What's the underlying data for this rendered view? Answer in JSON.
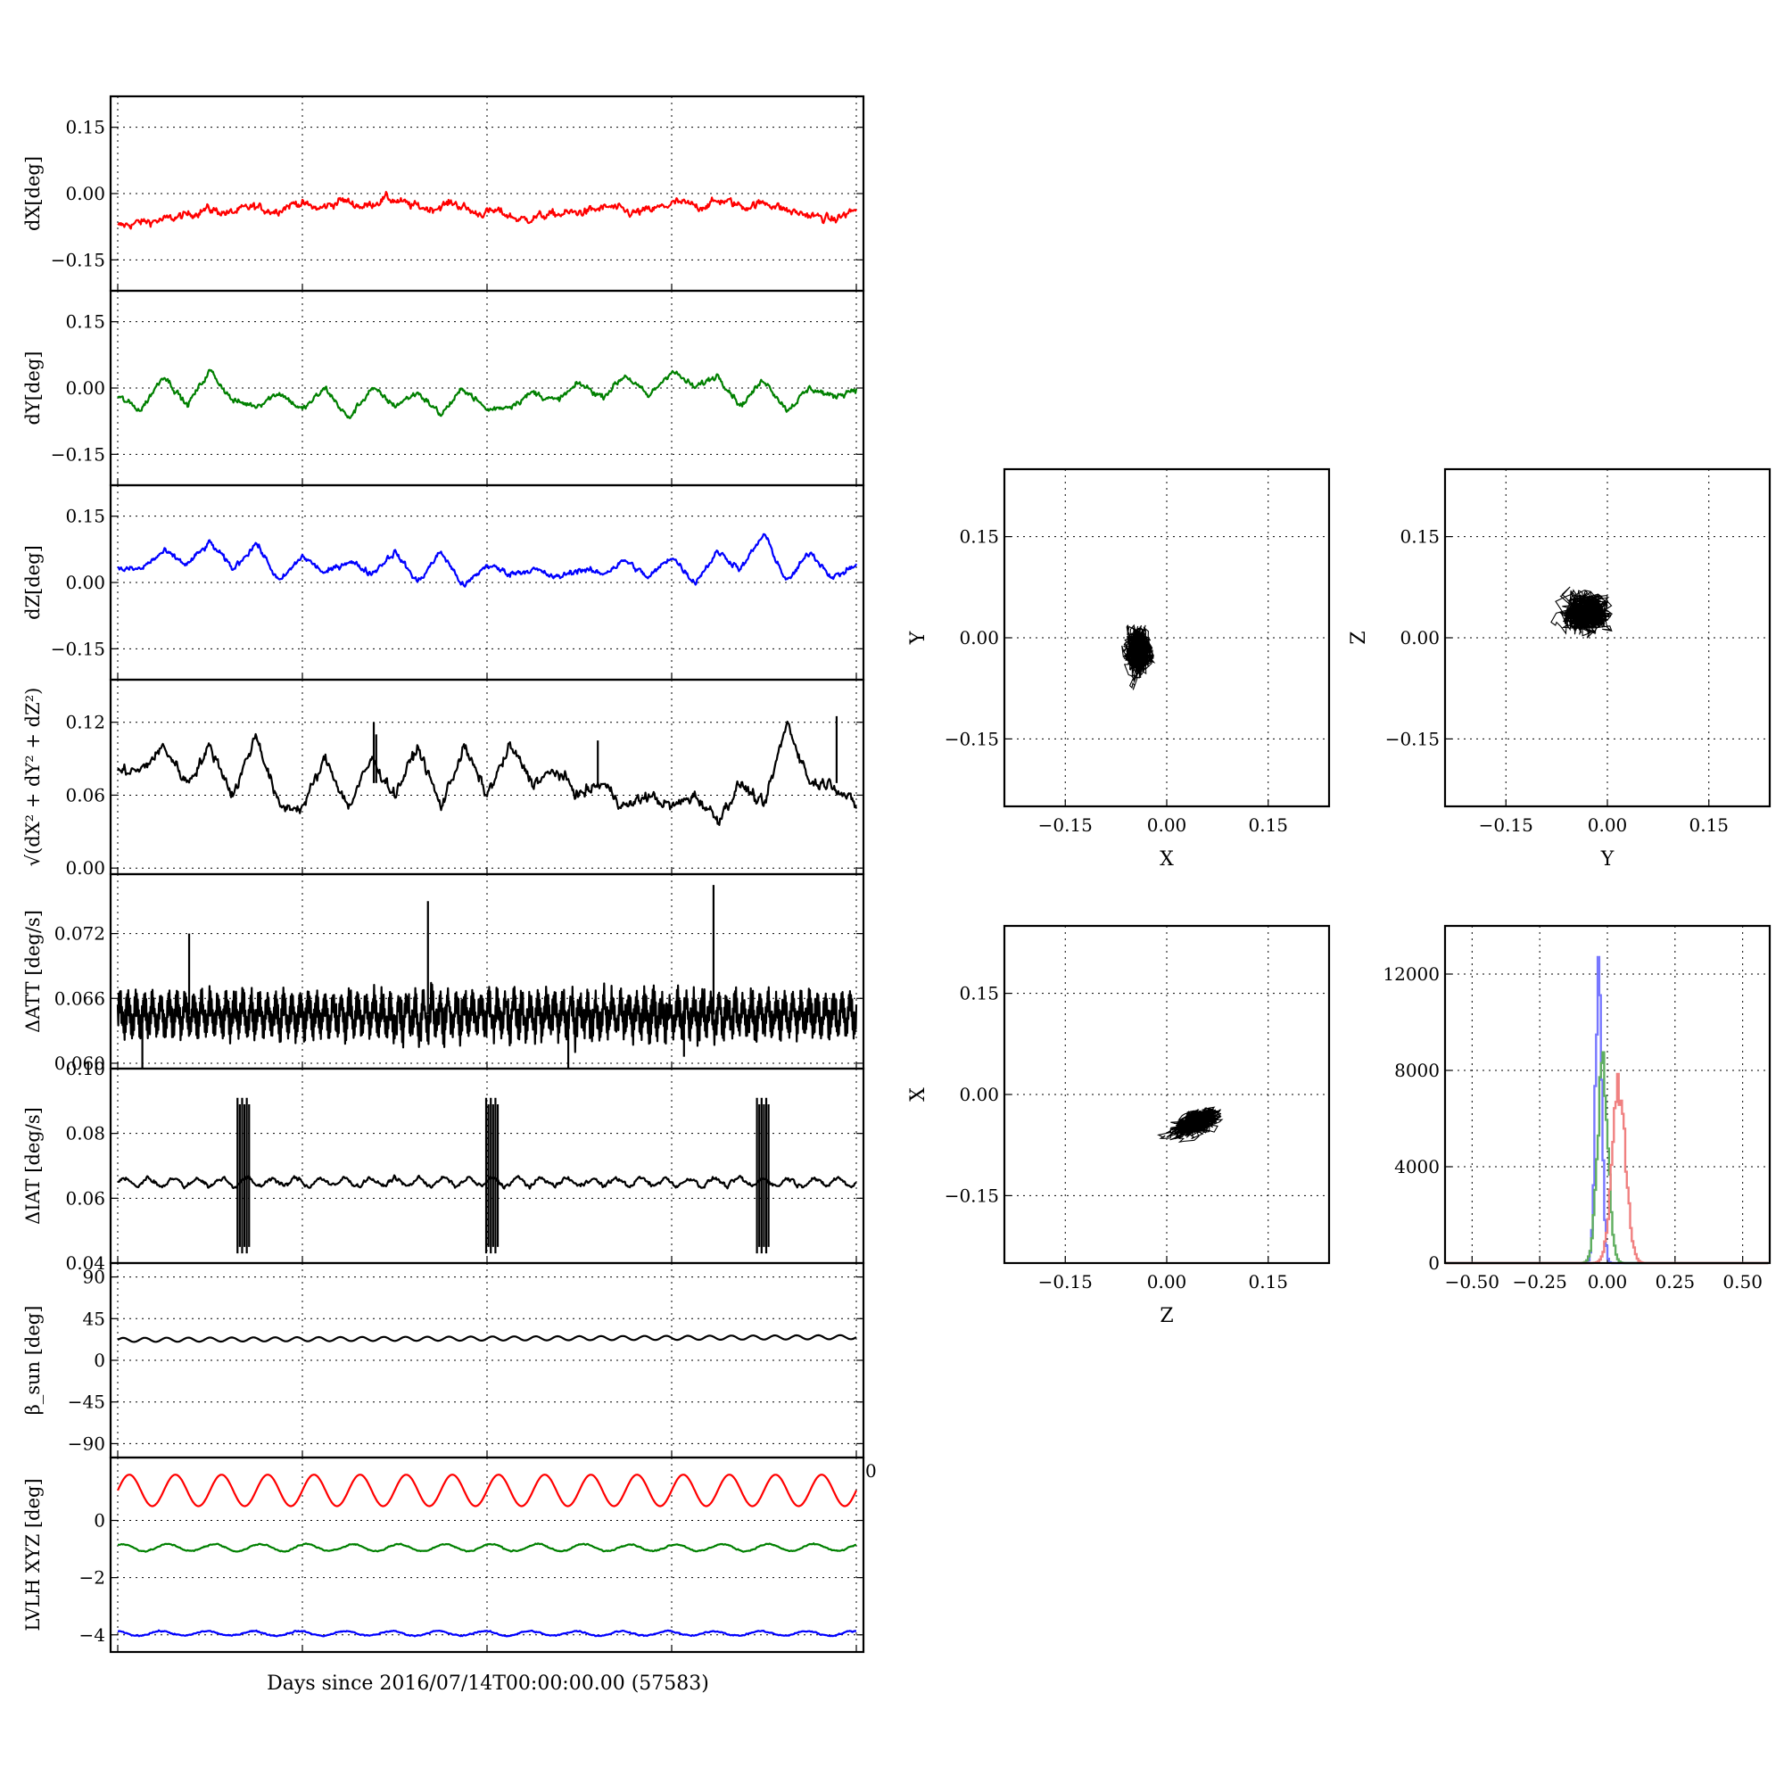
{
  "figure": {
    "xlabel": "Days since 2016/07/14T00:00:00.00 (57583)"
  },
  "chart_data": [
    {
      "id": "dx",
      "type": "line",
      "ylabel": "dX[deg]",
      "ylim": [
        -0.22,
        0.22
      ],
      "yticks": [
        -0.15,
        0.0,
        0.15
      ],
      "ytick_labels": [
        "−0.15",
        "0.00",
        "0.15"
      ],
      "series": [
        {
          "color": "#ff0000",
          "mean": -0.04,
          "amp": 0.012,
          "noise": 0.008,
          "periods": 13,
          "y": [
            -0.075,
            -0.065,
            -0.06,
            -0.05,
            -0.035,
            -0.045,
            -0.03,
            -0.04,
            -0.02,
            -0.035,
            -0.015,
            -0.03,
            -0.01,
            -0.025,
            -0.035,
            -0.02,
            -0.045,
            -0.04,
            -0.06,
            -0.05,
            -0.045,
            -0.04,
            -0.03,
            -0.045,
            -0.035,
            -0.02,
            -0.03,
            -0.015,
            -0.03,
            -0.02,
            -0.04,
            -0.05,
            -0.06,
            -0.035
          ]
        }
      ]
    },
    {
      "id": "dy",
      "type": "line",
      "ylabel": "dY[deg]",
      "ylim": [
        -0.22,
        0.22
      ],
      "yticks": [
        -0.15,
        0.0,
        0.15
      ],
      "ytick_labels": [
        "−0.15",
        "0.00",
        "0.15"
      ],
      "series": [
        {
          "color": "#008000",
          "mean": -0.02,
          "amp": 0.03,
          "noise": 0.006,
          "periods": 16,
          "y": [
            -0.02,
            -0.05,
            0.03,
            -0.04,
            0.04,
            -0.03,
            -0.04,
            -0.01,
            -0.05,
            0.0,
            -0.07,
            0.0,
            -0.04,
            -0.01,
            -0.06,
            0.0,
            -0.05,
            -0.04,
            -0.01,
            -0.03,
            0.01,
            -0.02,
            0.03,
            -0.02,
            0.04,
            0.0,
            0.03,
            -0.04,
            0.02,
            -0.05,
            0.0,
            -0.02,
            0.0
          ]
        }
      ]
    },
    {
      "id": "dz",
      "type": "line",
      "ylabel": "dZ[deg]",
      "ylim": [
        -0.22,
        0.22
      ],
      "yticks": [
        -0.15,
        0.0,
        0.15
      ],
      "ytick_labels": [
        "−0.15",
        "0.00",
        "0.15"
      ],
      "series": [
        {
          "color": "#0000ff",
          "mean": 0.045,
          "amp": 0.03,
          "noise": 0.006,
          "periods": 16,
          "y": [
            0.03,
            0.03,
            0.07,
            0.04,
            0.09,
            0.03,
            0.09,
            0.0,
            0.06,
            0.02,
            0.05,
            0.02,
            0.07,
            0.0,
            0.07,
            -0.01,
            0.04,
            0.02,
            0.03,
            0.01,
            0.03,
            0.02,
            0.05,
            0.01,
            0.06,
            0.0,
            0.07,
            0.03,
            0.11,
            0.0,
            0.07,
            0.01,
            0.04
          ]
        }
      ]
    },
    {
      "id": "dr",
      "type": "line",
      "ylabel": "√(dX² + dY² + dZ²)",
      "ylim": [
        -0.005,
        0.155
      ],
      "yticks": [
        0.0,
        0.06,
        0.12
      ],
      "ytick_labels": [
        "0.00",
        "0.06",
        "0.12"
      ],
      "series": [
        {
          "color": "#000000",
          "mean": 0.07,
          "amp": 0.02,
          "noise": 0.004,
          "periods": 16,
          "y": [
            0.08,
            0.08,
            0.1,
            0.07,
            0.1,
            0.06,
            0.11,
            0.05,
            0.05,
            0.09,
            0.05,
            0.09,
            0.06,
            0.1,
            0.05,
            0.1,
            0.06,
            0.1,
            0.07,
            0.08,
            0.06,
            0.07,
            0.05,
            0.06,
            0.05,
            0.06,
            0.04,
            0.07,
            0.05,
            0.12,
            0.07,
            0.07,
            0.05
          ]
        }
      ],
      "spikes": [
        {
          "x": 10.4,
          "y": 0.12
        },
        {
          "x": 10.5,
          "y": 0.11
        },
        {
          "x": 19.5,
          "y": 0.105
        },
        {
          "x": 29.2,
          "y": 0.125
        }
      ]
    },
    {
      "id": "datt",
      "type": "line",
      "ylabel": "ΔATT [deg/s]",
      "ylim": [
        0.0595,
        0.0775
      ],
      "yticks": [
        0.06,
        0.066,
        0.072
      ],
      "ytick_labels": [
        "0.060",
        "0.066",
        "0.072"
      ],
      "series": [
        {
          "color": "#000000",
          "mean": 0.0645,
          "amp": 0.0012,
          "noise": 0.0005,
          "periods": 90,
          "y": []
        }
      ],
      "spikes": [
        {
          "x": 2.9,
          "y": 0.072
        },
        {
          "x": 12.6,
          "y": 0.075
        },
        {
          "x": 24.2,
          "y": 0.0765
        }
      ],
      "dips": [
        {
          "x": 1.0,
          "y": 0.0595
        },
        {
          "x": 18.3,
          "y": 0.0595
        },
        {
          "x": 23.0,
          "y": 0.0606
        }
      ]
    },
    {
      "id": "diat",
      "type": "line",
      "ylabel": "ΔIAT [deg/s]",
      "ylim": [
        0.04,
        0.1
      ],
      "yticks": [
        0.04,
        0.06,
        0.08,
        0.1
      ],
      "ytick_labels": [
        "0.04",
        "0.06",
        "0.08",
        "0.10"
      ],
      "series": [
        {
          "color": "#000000",
          "mean": 0.065,
          "amp": 0.0012,
          "noise": 0.0006,
          "periods": 30,
          "y": []
        }
      ],
      "bursts": [
        {
          "x": 5.1,
          "lo": 0.043,
          "hi": 0.091
        },
        {
          "x": 15.2,
          "lo": 0.043,
          "hi": 0.091
        },
        {
          "x": 26.2,
          "lo": 0.043,
          "hi": 0.091
        }
      ]
    },
    {
      "id": "beta",
      "type": "line",
      "ylabel": "β_sun [deg]",
      "ylim": [
        -105,
        105
      ],
      "yticks": [
        -90,
        -45,
        0,
        45,
        90
      ],
      "ytick_labels": [
        "−90",
        "−45",
        "0",
        "45",
        "90"
      ],
      "series": [
        {
          "color": "#000000",
          "mean": 22,
          "amp": 2.2,
          "noise": 0,
          "periods": 34,
          "trend": 3,
          "y": []
        }
      ]
    },
    {
      "id": "lvlh",
      "type": "line",
      "ylabel": "LVLH XYZ [deg]",
      "ylim": [
        -4.6,
        2.2
      ],
      "yticks": [
        -4,
        -2,
        0
      ],
      "ytick_labels": [
        "−4",
        "−2",
        "0"
      ],
      "extra_tick_label": "0",
      "series": [
        {
          "color": "#ff0000",
          "mean": 1.05,
          "amp": 0.55,
          "noise": 0,
          "periods": 16,
          "y": []
        },
        {
          "color": "#008000",
          "mean": -0.95,
          "amp": 0.12,
          "noise": 0.02,
          "periods": 16,
          "y": []
        },
        {
          "color": "#0000ff",
          "mean": -3.95,
          "amp": 0.08,
          "noise": 0.02,
          "periods": 16,
          "y": []
        }
      ]
    },
    {
      "id": "xy",
      "type": "scatter",
      "xlabel": "X",
      "ylabel": "Y",
      "xlim": [
        -0.24,
        0.24
      ],
      "ylim": [
        -0.25,
        0.25
      ],
      "xticks": [
        -0.15,
        0.0,
        0.15
      ],
      "xtick_labels": [
        "−0.15",
        "0.00",
        "0.15"
      ],
      "yticks": [
        -0.15,
        0.0,
        0.15
      ],
      "ytick_labels": [
        "−0.15",
        "0.00",
        "0.15"
      ],
      "cloud": {
        "cx": -0.04,
        "cy": -0.02,
        "sx": 0.016,
        "sy": 0.03
      }
    },
    {
      "id": "yz",
      "type": "scatter",
      "xlabel": "Y",
      "ylabel": "Z",
      "xlim": [
        -0.24,
        0.24
      ],
      "ylim": [
        -0.25,
        0.25
      ],
      "xticks": [
        -0.15,
        0.0,
        0.15
      ],
      "xtick_labels": [
        "−0.15",
        "0.00",
        "0.15"
      ],
      "yticks": [
        -0.15,
        0.0,
        0.15
      ],
      "ytick_labels": [
        "−0.15",
        "0.00",
        "0.15"
      ],
      "cloud": {
        "cx": -0.03,
        "cy": 0.04,
        "sx": 0.028,
        "sy": 0.025
      }
    },
    {
      "id": "zx",
      "type": "scatter",
      "xlabel": "Z",
      "ylabel": "X",
      "xlim": [
        -0.24,
        0.24
      ],
      "ylim": [
        -0.25,
        0.25
      ],
      "xticks": [
        -0.15,
        0.0,
        0.15
      ],
      "xtick_labels": [
        "−0.15",
        "0.00",
        "0.15"
      ],
      "yticks": [
        -0.15,
        0.0,
        0.15
      ],
      "ytick_labels": [
        "−0.15",
        "0.00",
        "0.15"
      ],
      "cloud": {
        "cx": 0.045,
        "cy": -0.04,
        "sx": 0.03,
        "sy": 0.014,
        "tilt": 0.3
      }
    },
    {
      "id": "hist",
      "type": "line",
      "xlim": [
        -0.6,
        0.6
      ],
      "ylim": [
        0,
        14000
      ],
      "xticks": [
        -0.5,
        -0.25,
        0.0,
        0.25,
        0.5
      ],
      "xtick_labels": [
        "−0.50",
        "−0.25",
        "0.00",
        "0.25",
        "0.50"
      ],
      "yticks": [
        0,
        4000,
        8000,
        12000
      ],
      "ytick_labels": [
        "0",
        "4000",
        "8000",
        "12000"
      ],
      "series": [
        {
          "color": "#7777ff",
          "center": -0.035,
          "width": 0.012,
          "peak": 12500
        },
        {
          "color": "#5fae5f",
          "center": -0.02,
          "width": 0.02,
          "peak": 8000
        },
        {
          "color": "#f08080",
          "center": 0.04,
          "width": 0.025,
          "peak": 7300
        }
      ]
    }
  ]
}
